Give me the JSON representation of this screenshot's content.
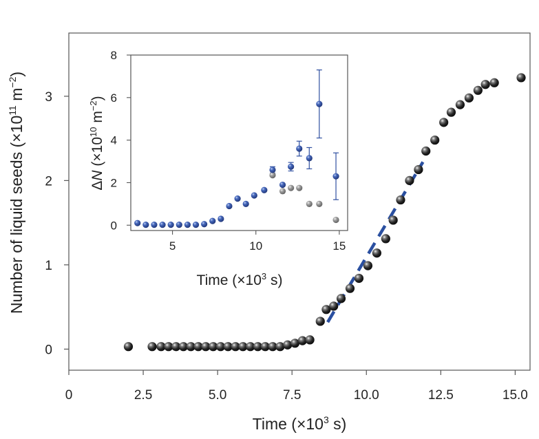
{
  "chart_data": [
    {
      "type": "scatter",
      "title": "",
      "xlabel": "Time (×10³ s)",
      "xlabel_parts": {
        "base": "Time (×10",
        "exp": "3",
        "unit": " s)"
      },
      "ylabel": "Number of liquid seeds (×10¹¹ m⁻²)",
      "ylabel_parts": {
        "base": "Number of liquid seeds (×10",
        "exp": "11",
        "mid": " m",
        "exp2": "−2",
        "end": ")"
      },
      "xlim": [
        0,
        15.5
      ],
      "ylim": [
        -0.25,
        3.75
      ],
      "xticks": [
        "0",
        "2.5",
        "5.0",
        "7.5",
        "10.0",
        "12.5",
        "15.0"
      ],
      "xtick_values": [
        0,
        2.5,
        5.0,
        7.5,
        10.0,
        12.5,
        15.0
      ],
      "yticks": [
        "0",
        "1",
        "2",
        "3"
      ],
      "ytick_values": [
        0,
        1,
        2,
        3
      ],
      "series": [
        {
          "name": "liquid seeds",
          "color": "#1a1a1a",
          "x": [
            2.0,
            2.8,
            3.1,
            3.35,
            3.6,
            3.85,
            4.1,
            4.35,
            4.6,
            4.85,
            5.1,
            5.35,
            5.6,
            5.85,
            6.1,
            6.35,
            6.6,
            6.85,
            7.1,
            7.35,
            7.6,
            7.85,
            8.1,
            8.45,
            8.65,
            8.9,
            9.15,
            9.45,
            9.75,
            10.05,
            10.35,
            10.65,
            10.9,
            11.15,
            11.45,
            11.75,
            12.0,
            12.3,
            12.6,
            12.85,
            13.15,
            13.45,
            13.75,
            14.0,
            14.3,
            15.2
          ],
          "y": [
            0.03,
            0.03,
            0.03,
            0.03,
            0.03,
            0.03,
            0.03,
            0.03,
            0.03,
            0.03,
            0.03,
            0.03,
            0.03,
            0.03,
            0.03,
            0.03,
            0.03,
            0.03,
            0.03,
            0.05,
            0.07,
            0.1,
            0.11,
            0.33,
            0.47,
            0.51,
            0.6,
            0.72,
            0.84,
            0.99,
            1.14,
            1.31,
            1.53,
            1.77,
            2.0,
            2.13,
            2.35,
            2.48,
            2.69,
            2.81,
            2.9,
            2.98,
            3.07,
            3.14,
            3.16,
            3.22
          ]
        }
      ],
      "fit_line": {
        "name": "linear fit",
        "color": "#2a4fa0",
        "x": [
          8.7,
          11.9
        ],
        "y": [
          0.32,
          2.22
        ]
      }
    },
    {
      "type": "scatter",
      "title": "",
      "xlabel": "Time (×10³ s)",
      "xlabel_parts": {
        "base": "Time (×10",
        "exp": "3",
        "unit": " s)"
      },
      "ylabel": "ΔN (×10¹⁰ m⁻²)",
      "ylabel_parts": {
        "delta": "Δ",
        "var": "N",
        "base": " (×10",
        "exp": "10",
        "mid": " m",
        "exp2": "−2",
        "end": ")"
      },
      "xlim": [
        2.5,
        15.5
      ],
      "ylim": [
        -0.25,
        8.0
      ],
      "xticks": [
        "5",
        "10",
        "15"
      ],
      "xtick_values": [
        5,
        10,
        15
      ],
      "yticks": [
        "0",
        "2",
        "4",
        "6",
        "8"
      ],
      "ytick_values": [
        0,
        2,
        4,
        6,
        8
      ],
      "series": [
        {
          "name": "gray",
          "color": "#8c8c8c",
          "x": [
            11.0,
            11.6,
            12.1,
            12.6,
            13.2,
            13.8,
            14.8
          ],
          "y": [
            2.35,
            1.6,
            1.75,
            1.75,
            1.0,
            1.0,
            0.25
          ]
        },
        {
          "name": "blue",
          "color": "#2f4fa0",
          "x": [
            2.9,
            3.4,
            3.9,
            4.4,
            4.9,
            5.4,
            5.9,
            6.4,
            6.9,
            7.4,
            7.9,
            8.4,
            8.9,
            9.4,
            9.9,
            10.5,
            11.0,
            11.6,
            12.1,
            12.6,
            13.2,
            13.8,
            14.8
          ],
          "y": [
            0.1,
            0.02,
            0.02,
            0.02,
            0.02,
            0.02,
            0.02,
            0.02,
            0.05,
            0.2,
            0.3,
            0.9,
            1.25,
            1.0,
            1.4,
            1.65,
            2.6,
            1.9,
            2.75,
            3.6,
            3.15,
            5.7,
            2.3
          ],
          "yerr": [
            0,
            0,
            0,
            0,
            0,
            0,
            0,
            0,
            0,
            0,
            0,
            0,
            0,
            0,
            0,
            0,
            0.15,
            0,
            0.2,
            0.35,
            0.5,
            1.6,
            1.1
          ]
        }
      ]
    }
  ]
}
